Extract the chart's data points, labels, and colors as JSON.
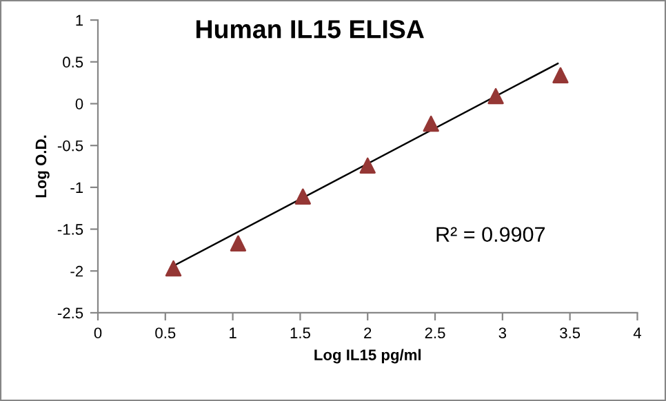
{
  "chart_data": {
    "type": "scatter",
    "title": "Human IL15 ELISA",
    "xlabel": "Log IL15 pg/ml",
    "ylabel": "Log O.D.",
    "annotations": [
      "R² = 0.9907"
    ],
    "series": [
      {
        "marker": "triangle",
        "color": "#953735",
        "x": [
          0.56,
          1.04,
          1.52,
          2.0,
          2.47,
          2.95,
          3.43
        ],
        "values": [
          -1.97,
          -1.67,
          -1.11,
          -0.74,
          -0.24,
          0.09,
          0.34
        ]
      },
      {
        "type": "line",
        "color": "#000000",
        "x": [
          0.56,
          3.41
        ],
        "values": [
          -1.94,
          0.48
        ]
      }
    ],
    "grid": false,
    "legend": false,
    "xlim": [
      0,
      4
    ],
    "xticks": [
      0,
      0.5,
      1,
      1.5,
      2,
      2.5,
      3,
      3.5,
      4
    ],
    "ylim": [
      -2.5,
      1
    ],
    "yticks": [
      -2.5,
      -2,
      -1.5,
      -1,
      -0.5,
      0,
      0.5,
      1
    ]
  }
}
